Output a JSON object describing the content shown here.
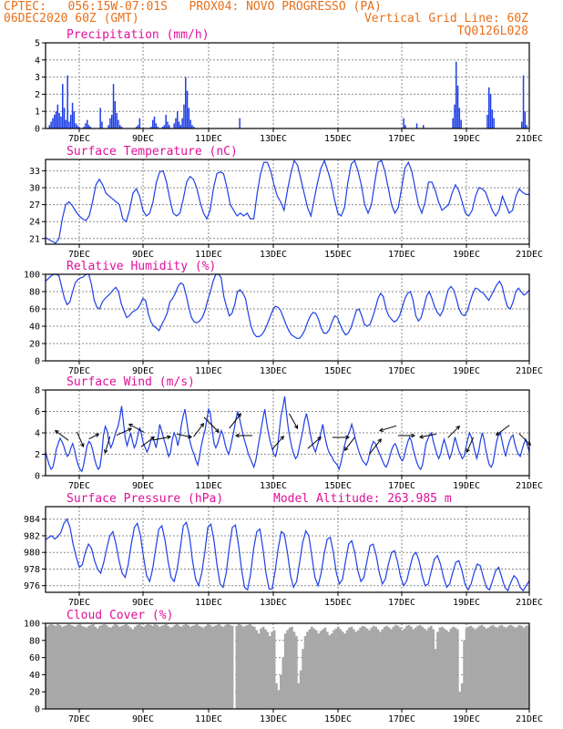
{
  "header": {
    "line1_left": "CPTEC:   056:15W-07:01S   PROX04: NOVO PROGRESSO (PA)",
    "line2_left": "06DEC2020 60Z (GMT)",
    "line2_right": "Vertical Grid Line: 60Z",
    "line3_right": "TQ0126L028"
  },
  "colors": {
    "header": "#e8701a",
    "title": "#e0109a",
    "line": "#1f3fe6",
    "cloud": "#a8a8a8"
  },
  "chart_data": [
    {
      "type": "bar",
      "title": "Precipitation (mm/h)",
      "x_ticks": [
        "7DEC",
        "9DEC",
        "11DEC",
        "13DEC",
        "15DEC",
        "17DEC",
        "19DEC",
        "21DEC"
      ],
      "ylim": [
        0,
        5
      ],
      "y_ticks": [
        0,
        1,
        2,
        3,
        4,
        5
      ],
      "values": [
        0,
        0,
        0.2,
        0.4,
        0.6,
        0.8,
        1.0,
        1.4,
        0.9,
        0.7,
        2.6,
        1.2,
        0.5,
        3.1,
        0.4,
        0.8,
        1.5,
        1.0,
        0.3,
        0.2,
        0.1,
        0,
        0,
        0.1,
        0.3,
        0.5,
        0.2,
        0.1,
        0,
        0,
        0,
        0,
        0,
        1.2,
        0.4,
        0,
        0,
        0,
        0.2,
        0.6,
        0.8,
        2.6,
        1.6,
        0.9,
        0.5,
        0.2,
        0.1,
        0,
        0,
        0,
        0,
        0,
        0,
        0,
        0,
        0.1,
        0.2,
        0.6,
        0,
        0,
        0,
        0,
        0,
        0,
        0.1,
        0.5,
        0.7,
        0.3,
        0.1,
        0,
        0,
        0.1,
        0.2,
        0.8,
        0.4,
        0.2,
        0,
        0,
        0.3,
        0.6,
        1.0,
        0.4,
        0.2,
        0.6,
        1.4,
        3.0,
        2.2,
        1.2,
        0.5,
        0.2,
        0.1,
        0,
        0,
        0,
        0,
        0,
        0,
        0,
        0,
        0,
        0,
        0,
        0,
        0,
        0,
        0,
        0,
        0,
        0,
        0,
        0,
        0,
        0,
        0,
        0,
        0,
        0,
        0,
        0.6,
        0,
        0,
        0,
        0,
        0,
        0,
        0,
        0,
        0,
        0,
        0,
        0,
        0,
        0,
        0,
        0,
        0,
        0,
        0,
        0,
        0,
        0,
        0,
        0,
        0,
        0,
        0,
        0,
        0,
        0,
        0,
        0,
        0,
        0,
        0,
        0,
        0,
        0,
        0,
        0,
        0,
        0,
        0,
        0,
        0,
        0,
        0,
        0,
        0,
        0,
        0,
        0,
        0,
        0,
        0,
        0,
        0,
        0,
        0,
        0,
        0,
        0,
        0,
        0,
        0,
        0,
        0,
        0,
        0,
        0,
        0,
        0,
        0,
        0,
        0,
        0,
        0,
        0,
        0,
        0,
        0,
        0,
        0,
        0,
        0,
        0,
        0,
        0,
        0,
        0,
        0,
        0,
        0,
        0,
        0,
        0,
        0,
        0,
        0,
        0.6,
        0.2,
        0,
        0,
        0,
        0,
        0,
        0,
        0.3,
        0,
        0,
        0,
        0.2,
        0,
        0,
        0,
        0,
        0,
        0,
        0,
        0,
        0,
        0,
        0,
        0,
        0,
        0,
        0,
        0,
        0,
        0.6,
        1.4,
        3.9,
        2.5,
        1.2,
        0.5,
        0,
        0,
        0,
        0,
        0,
        0,
        0,
        0,
        0,
        0,
        0,
        0,
        0,
        0,
        0,
        0.8,
        2.4,
        2.0,
        1.1,
        0.6,
        0,
        0,
        0,
        0,
        0,
        0,
        0,
        0,
        0,
        0,
        0,
        0,
        0,
        0,
        0,
        0,
        0.4,
        3.1,
        1.0,
        0.2,
        0
      ]
    },
    {
      "type": "line",
      "title": "Surface Temperature (nC)",
      "x_ticks": [
        "7DEC",
        "9DEC",
        "11DEC",
        "13DEC",
        "15DEC",
        "17DEC",
        "19DEC",
        "21DEC"
      ],
      "ylim": [
        20,
        35
      ],
      "y_ticks": [
        21,
        24,
        27,
        30,
        33
      ],
      "values": [
        21.2,
        20.8,
        20.5,
        20.2,
        21.0,
        24.5,
        27.0,
        27.5,
        26.8,
        25.8,
        25.0,
        24.5,
        24.2,
        25.0,
        27.5,
        30.5,
        31.5,
        30.5,
        29.0,
        28.5,
        28.0,
        27.5,
        27.0,
        24.5,
        24.0,
        26.0,
        29.0,
        29.8,
        28.5,
        26.0,
        25.0,
        25.5,
        27.5,
        31.0,
        32.8,
        33.0,
        31.0,
        28.0,
        25.5,
        25.0,
        25.5,
        28.0,
        31.0,
        32.0,
        31.5,
        30.0,
        27.5,
        25.5,
        24.5,
        26.0,
        30.0,
        32.5,
        32.8,
        32.5,
        30.0,
        27.0,
        26.0,
        25.0,
        25.5,
        25.0,
        25.5,
        24.5,
        24.5,
        29.0,
        32.5,
        34.5,
        34.5,
        33.0,
        30.5,
        28.5,
        27.5,
        26.0,
        29.5,
        32.5,
        34.8,
        34.0,
        31.5,
        29.0,
        26.5,
        25.0,
        28.0,
        31.0,
        33.5,
        34.8,
        33.0,
        31.0,
        28.0,
        25.5,
        25.0,
        26.5,
        31.0,
        34.2,
        34.8,
        33.0,
        30.5,
        27.0,
        25.5,
        27.0,
        31.0,
        34.5,
        34.8,
        33.0,
        30.0,
        27.0,
        25.5,
        26.5,
        30.0,
        33.5,
        34.5,
        33.0,
        30.0,
        27.0,
        25.5,
        27.5,
        31.0,
        31.0,
        29.5,
        27.5,
        26.0,
        26.5,
        27.0,
        29.0,
        30.5,
        29.5,
        27.5,
        25.5,
        25.0,
        26.0,
        28.5,
        30.0,
        29.8,
        29.2,
        27.5,
        26.0,
        25.0,
        26.0,
        28.5,
        27.0,
        25.5,
        26.0,
        28.5,
        29.8,
        29.2,
        28.8,
        28.8
      ]
    },
    {
      "type": "line",
      "title": "Relative Humidity (%)",
      "x_ticks": [
        "7DEC",
        "9DEC",
        "11DEC",
        "13DEC",
        "15DEC",
        "17DEC",
        "19DEC",
        "21DEC"
      ],
      "ylim": [
        0,
        100
      ],
      "y_ticks": [
        0,
        20,
        40,
        60,
        80,
        100
      ],
      "values": [
        92,
        95,
        98,
        100,
        100,
        98,
        85,
        72,
        65,
        68,
        80,
        90,
        94,
        96,
        97,
        100,
        100,
        88,
        70,
        62,
        60,
        68,
        72,
        75,
        78,
        82,
        85,
        80,
        66,
        58,
        50,
        52,
        56,
        58,
        60,
        65,
        72,
        70,
        55,
        45,
        40,
        38,
        35,
        42,
        48,
        55,
        68,
        72,
        78,
        86,
        90,
        88,
        76,
        62,
        50,
        45,
        44,
        46,
        50,
        58,
        70,
        80,
        92,
        100,
        100,
        96,
        74,
        62,
        52,
        55,
        65,
        80,
        82,
        78,
        72,
        55,
        40,
        32,
        28,
        28,
        30,
        35,
        42,
        50,
        58,
        63,
        62,
        58,
        50,
        42,
        35,
        30,
        28,
        26,
        26,
        30,
        36,
        45,
        52,
        56,
        55,
        48,
        38,
        32,
        32,
        36,
        45,
        52,
        50,
        42,
        35,
        30,
        32,
        38,
        48,
        58,
        60,
        52,
        42,
        40,
        42,
        50,
        60,
        72,
        78,
        74,
        60,
        52,
        48,
        45,
        47,
        52,
        62,
        72,
        78,
        80,
        70,
        52,
        46,
        50,
        62,
        75,
        80,
        72,
        62,
        56,
        52,
        58,
        70,
        82,
        86,
        82,
        72,
        60,
        54,
        52,
        57,
        67,
        77,
        84,
        83,
        80,
        78,
        74,
        70,
        76,
        82,
        88,
        92,
        86,
        72,
        62,
        60,
        68,
        80,
        84,
        80,
        76,
        78,
        82
      ]
    },
    {
      "type": "line",
      "title": "Surface Wind (m/s)",
      "x_ticks": [
        "7DEC",
        "9DEC",
        "11DEC",
        "13DEC",
        "15DEC",
        "17DEC",
        "19DEC",
        "21DEC"
      ],
      "ylim": [
        0,
        8
      ],
      "y_ticks": [
        0,
        2,
        4,
        6,
        8
      ],
      "values": [
        2.2,
        1.6,
        1.0,
        0.6,
        0.8,
        1.5,
        2.5,
        3.0,
        3.5,
        3.2,
        2.8,
        2.2,
        1.8,
        2.0,
        2.6,
        3.0,
        2.4,
        1.6,
        1.0,
        0.6,
        0.4,
        1.0,
        2.0,
        2.8,
        3.2,
        3.0,
        2.4,
        1.6,
        1.0,
        0.6,
        0.8,
        2.0,
        3.8,
        4.6,
        4.2,
        3.2,
        2.6,
        3.0,
        3.6,
        4.2,
        4.6,
        5.4,
        6.5,
        5.0,
        3.5,
        2.8,
        3.4,
        4.0,
        3.2,
        2.6,
        3.0,
        3.8,
        4.5,
        3.8,
        3.0,
        2.6,
        2.2,
        2.6,
        3.2,
        3.6,
        3.2,
        2.6,
        3.5,
        4.8,
        4.2,
        3.6,
        3.0,
        2.4,
        1.8,
        2.2,
        3.4,
        4.0,
        3.6,
        2.8,
        3.6,
        4.8,
        5.6,
        6.2,
        5.0,
        3.8,
        3.0,
        2.4,
        2.0,
        1.4,
        1.0,
        1.8,
        2.8,
        3.6,
        4.2,
        5.2,
        6.2,
        5.8,
        4.2,
        3.0,
        2.6,
        3.0,
        3.6,
        4.2,
        3.8,
        3.0,
        2.4,
        2.0,
        2.6,
        3.4,
        4.2,
        5.2,
        6.0,
        5.4,
        4.6,
        3.8,
        3.2,
        2.6,
        2.0,
        1.6,
        1.2,
        0.8,
        1.4,
        2.4,
        3.4,
        4.4,
        5.4,
        6.2,
        5.0,
        4.0,
        3.2,
        2.6,
        2.0,
        1.8,
        2.6,
        4.2,
        5.6,
        6.4,
        7.4,
        5.8,
        4.4,
        3.4,
        2.6,
        2.0,
        1.6,
        1.8,
        2.6,
        3.4,
        4.2,
        5.2,
        5.8,
        5.0,
        4.0,
        3.2,
        2.6,
        2.2,
        2.8,
        3.4,
        4.0,
        4.8,
        3.8,
        3.0,
        2.4,
        2.0,
        1.8,
        1.4,
        1.2,
        1.0,
        0.6,
        1.2,
        2.0,
        2.8,
        3.4,
        3.8,
        4.2,
        4.8,
        4.2,
        3.4,
        2.8,
        2.2,
        1.8,
        1.4,
        1.2,
        1.0,
        1.4,
        2.2,
        2.8,
        3.2,
        3.0,
        2.6,
        2.2,
        1.8,
        1.4,
        1.0,
        0.8,
        1.2,
        1.8,
        2.4,
        2.8,
        3.0,
        2.6,
        2.0,
        1.6,
        1.4,
        1.8,
        2.6,
        3.2,
        3.6,
        3.2,
        2.4,
        1.8,
        1.2,
        0.8,
        0.6,
        1.0,
        2.0,
        3.0,
        3.4,
        3.8,
        4.0,
        3.2,
        2.6,
        2.0,
        1.6,
        2.0,
        2.8,
        3.4,
        2.8,
        2.2,
        1.6,
        2.0,
        2.8,
        3.6,
        3.0,
        2.4,
        2.0,
        1.6,
        1.8,
        2.6,
        3.4,
        4.0,
        3.6,
        3.0,
        2.2,
        1.6,
        2.2,
        3.2,
        4.0,
        3.4,
        2.4,
        1.6,
        1.0,
        0.8,
        1.2,
        2.2,
        3.2,
        3.8,
        4.0,
        3.2,
        2.4,
        1.8,
        2.6,
        3.2,
        3.6,
        3.8,
        3.0,
        2.4,
        2.0,
        1.8,
        2.4,
        3.0,
        3.4,
        2.8,
        2.2
      ]
    },
    {
      "type": "line",
      "title": "Surface Pressure (hPa)",
      "annotation": "Model Altitude: 263.985 m",
      "x_ticks": [
        "7DEC",
        "9DEC",
        "11DEC",
        "13DEC",
        "15DEC",
        "17DEC",
        "19DEC",
        "21DEC"
      ],
      "ylim": [
        975.2,
        985.5
      ],
      "y_ticks": [
        976,
        978,
        980,
        982,
        984
      ],
      "values": [
        981.5,
        981.8,
        982.0,
        981.6,
        981.9,
        982.4,
        983.5,
        984.0,
        983.0,
        981.0,
        979.5,
        978.2,
        978.5,
        980.0,
        981.0,
        980.5,
        979.0,
        978.0,
        977.5,
        978.8,
        980.5,
        982.0,
        982.5,
        981.0,
        979.0,
        977.5,
        977.0,
        978.5,
        981.0,
        983.0,
        983.5,
        982.0,
        979.5,
        977.2,
        976.5,
        978.0,
        980.5,
        982.8,
        983.2,
        981.5,
        979.0,
        977.0,
        976.5,
        978.0,
        980.5,
        983.2,
        983.6,
        982.0,
        979.0,
        976.8,
        976.0,
        977.5,
        980.0,
        983.0,
        983.4,
        981.5,
        978.5,
        976.2,
        975.8,
        977.5,
        980.5,
        983.0,
        983.3,
        981.0,
        978.0,
        975.8,
        975.5,
        977.5,
        980.5,
        982.5,
        982.8,
        980.5,
        977.5,
        975.6,
        975.6,
        977.8,
        980.5,
        982.5,
        982.2,
        980.0,
        977.2,
        975.8,
        976.5,
        978.8,
        981.2,
        982.6,
        982.0,
        979.5,
        977.0,
        976.0,
        977.5,
        979.8,
        981.6,
        981.8,
        980.0,
        977.5,
        976.2,
        976.8,
        979.0,
        981.0,
        981.4,
        980.0,
        977.8,
        976.5,
        977.0,
        979.0,
        980.8,
        981.0,
        979.6,
        977.6,
        976.2,
        976.8,
        978.6,
        980.0,
        980.2,
        978.8,
        977.0,
        976.0,
        976.6,
        978.2,
        979.6,
        980.0,
        979.0,
        977.2,
        976.0,
        976.2,
        977.8,
        979.2,
        979.6,
        978.6,
        977.0,
        975.8,
        976.2,
        977.6,
        978.8,
        979.0,
        977.8,
        976.2,
        975.5,
        976.2,
        977.6,
        978.6,
        978.4,
        977.0,
        975.8,
        975.5,
        976.6,
        977.8,
        978.2,
        977.0,
        975.8,
        975.4,
        976.4,
        977.2,
        976.8,
        975.8,
        975.4,
        976.0,
        976.6
      ]
    },
    {
      "type": "area",
      "title": "Cloud Cover (%)",
      "x_ticks": [
        "7DEC",
        "9DEC",
        "11DEC",
        "13DEC",
        "15DEC",
        "17DEC",
        "19DEC",
        "21DEC"
      ],
      "ylim": [
        0,
        100
      ],
      "y_ticks": [
        0,
        20,
        40,
        60,
        80,
        100
      ],
      "values": [
        96,
        98,
        99,
        98,
        97,
        99,
        98,
        96,
        97,
        98,
        99,
        98,
        97,
        96,
        98,
        99,
        97,
        96,
        95,
        97,
        98,
        99,
        96,
        94,
        97,
        98,
        99,
        98,
        96,
        95,
        97,
        99,
        98,
        96,
        97,
        98,
        99,
        97,
        95,
        93,
        96,
        98,
        99,
        97,
        96,
        98,
        99,
        98,
        97,
        99,
        98,
        96,
        97,
        98,
        99,
        97,
        95,
        96,
        98,
        99,
        97,
        96,
        98,
        99,
        98,
        96,
        97,
        98,
        99,
        97,
        96,
        95,
        97,
        99,
        98,
        96,
        97,
        98,
        99,
        97,
        96,
        98,
        99,
        98,
        97,
        0,
        97,
        99,
        98,
        96,
        97,
        98,
        99,
        97,
        96,
        92,
        88,
        94,
        96,
        93,
        90,
        85,
        90,
        92,
        30,
        22,
        40,
        60,
        88,
        92,
        95,
        96,
        90,
        85,
        30,
        45,
        70,
        85,
        90,
        93,
        96,
        94,
        92,
        88,
        91,
        93,
        95,
        90,
        86,
        88,
        92,
        94,
        96,
        93,
        90,
        88,
        92,
        95,
        96,
        93,
        90,
        92,
        95,
        97,
        96,
        94,
        92,
        95,
        97,
        96,
        93,
        90,
        93,
        96,
        97,
        95,
        93,
        96,
        98,
        97,
        95,
        92,
        94,
        97,
        98,
        96,
        93,
        95,
        97,
        98,
        96,
        94,
        92,
        95,
        97,
        93,
        70,
        90,
        95,
        96,
        94,
        92,
        90,
        94,
        96,
        95,
        93,
        20,
        30,
        80,
        94,
        96,
        97,
        95,
        93,
        95,
        97,
        98,
        96,
        94,
        95,
        97,
        98,
        96,
        95,
        97,
        98,
        96,
        95,
        97,
        98,
        97,
        95,
        96,
        98,
        97,
        95,
        97,
        98
      ]
    }
  ]
}
